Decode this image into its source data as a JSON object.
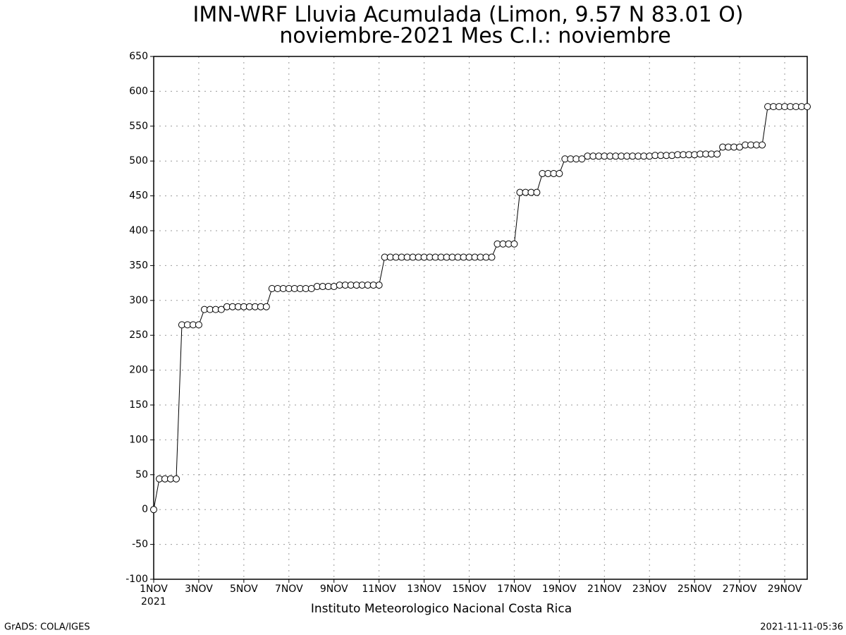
{
  "chart_data": {
    "type": "line",
    "title": "IMN-WRF  Lluvia Acumulada (Limon, 9.57  N 83.01  O)",
    "subtitle": "noviembre-2021 Mes C.I.: noviembre",
    "x_label_year": "2021",
    "x_label": "Instituto Meteorologico Nacional Costa Rica",
    "x": [
      1,
      1.25,
      1.5,
      1.75,
      2,
      2.25,
      2.5,
      2.75,
      3,
      3.25,
      3.5,
      3.75,
      4,
      4.25,
      4.5,
      4.75,
      5,
      5.25,
      5.5,
      5.75,
      6,
      6.25,
      6.5,
      6.75,
      7,
      7.25,
      7.5,
      7.75,
      8,
      8.25,
      8.5,
      8.75,
      9,
      9.25,
      9.5,
      9.75,
      10,
      10.25,
      10.5,
      10.75,
      11,
      11.25,
      11.5,
      11.75,
      12,
      12.25,
      12.5,
      12.75,
      13,
      13.25,
      13.5,
      13.75,
      14,
      14.25,
      14.5,
      14.75,
      15,
      15.25,
      15.5,
      15.75,
      16,
      16.25,
      16.5,
      16.75,
      17,
      17.25,
      17.5,
      17.75,
      18,
      18.25,
      18.5,
      18.75,
      19,
      19.25,
      19.5,
      19.75,
      20,
      20.25,
      20.5,
      20.75,
      21,
      21.25,
      21.5,
      21.75,
      22,
      22.25,
      22.5,
      22.75,
      23,
      23.25,
      23.5,
      23.75,
      24,
      24.25,
      24.5,
      24.75,
      25,
      25.25,
      25.5,
      25.75,
      26,
      26.25,
      26.5,
      26.75,
      27,
      27.25,
      27.5,
      27.75,
      28,
      28.25,
      28.5,
      28.75,
      29,
      29.25,
      29.5,
      29.75,
      30
    ],
    "series": [
      {
        "color": "#000000",
        "values": [
          0,
          44,
          44,
          44,
          44,
          265,
          265,
          265,
          265,
          287,
          287,
          287,
          287,
          291,
          291,
          291,
          291,
          291,
          291,
          291,
          291,
          317,
          317,
          317,
          317,
          317,
          317,
          317,
          317,
          320,
          320,
          320,
          320,
          322,
          322,
          322,
          322,
          322,
          322,
          322,
          322,
          362,
          362,
          362,
          362,
          362,
          362,
          362,
          362,
          362,
          362,
          362,
          362,
          362,
          362,
          362,
          362,
          362,
          362,
          362,
          362,
          381,
          381,
          381,
          381,
          455,
          455,
          455,
          455,
          482,
          482,
          482,
          482,
          503,
          503,
          503,
          503,
          507,
          507,
          507,
          507,
          507,
          507,
          507,
          507,
          507,
          507,
          507,
          507,
          508,
          508,
          508,
          508,
          509,
          509,
          509,
          509,
          510,
          510,
          510,
          510,
          520,
          520,
          520,
          520,
          523,
          523,
          523,
          523,
          578,
          578,
          578,
          578,
          578,
          578,
          578,
          578
        ]
      }
    ],
    "xlim": [
      1,
      30
    ],
    "xticks": [
      {
        "value": 1,
        "label": "1NOV"
      },
      {
        "value": 3,
        "label": "3NOV"
      },
      {
        "value": 5,
        "label": "5NOV"
      },
      {
        "value": 7,
        "label": "7NOV"
      },
      {
        "value": 9,
        "label": "9NOV"
      },
      {
        "value": 11,
        "label": "11NOV"
      },
      {
        "value": 13,
        "label": "13NOV"
      },
      {
        "value": 15,
        "label": "15NOV"
      },
      {
        "value": 17,
        "label": "17NOV"
      },
      {
        "value": 19,
        "label": "19NOV"
      },
      {
        "value": 21,
        "label": "21NOV"
      },
      {
        "value": 23,
        "label": "23NOV"
      },
      {
        "value": 25,
        "label": "25NOV"
      },
      {
        "value": 27,
        "label": "27NOV"
      },
      {
        "value": 29,
        "label": "29NOV"
      }
    ],
    "ylim": [
      -100,
      650
    ],
    "yticks": [
      -100,
      -50,
      0,
      50,
      100,
      150,
      200,
      250,
      300,
      350,
      400,
      450,
      500,
      550,
      600,
      650
    ],
    "grid": true
  },
  "footer": {
    "left": "GrADS: COLA/IGES",
    "right": "2021-11-11-05:36"
  }
}
